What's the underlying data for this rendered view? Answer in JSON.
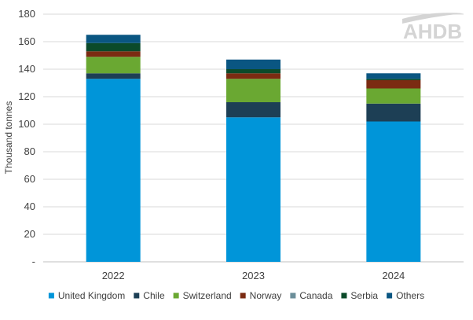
{
  "chart_data": {
    "type": "bar",
    "stacked": true,
    "categories": [
      "2022",
      "2023",
      "2024"
    ],
    "series": [
      {
        "name": "United Kingdom",
        "color": "#0095d9",
        "values": [
          133,
          105,
          102
        ]
      },
      {
        "name": "Chile",
        "color": "#1d3f55",
        "values": [
          4,
          11,
          13
        ]
      },
      {
        "name": "Switzerland",
        "color": "#6aa832",
        "values": [
          12,
          17,
          11
        ]
      },
      {
        "name": "Norway",
        "color": "#7b2b12",
        "values": [
          4,
          4,
          6
        ]
      },
      {
        "name": "Canada",
        "color": "#6b8e99",
        "values": [
          0,
          0,
          0
        ]
      },
      {
        "name": "Serbia",
        "color": "#0b4a2a",
        "values": [
          6,
          3,
          1
        ]
      },
      {
        "name": "Others",
        "color": "#0a5682",
        "values": [
          6,
          7,
          4
        ]
      }
    ],
    "title": "",
    "xlabel": "",
    "ylabel": "Thousand tonnes",
    "ylim": [
      0,
      180
    ],
    "y_ticks": [
      0,
      20,
      40,
      60,
      80,
      100,
      120,
      140,
      160,
      180
    ],
    "y_tick_labels": [
      "-",
      "20",
      "40",
      "60",
      "80",
      "100",
      "120",
      "140",
      "160",
      "180"
    ],
    "grid": true,
    "legend_position": "bottom"
  },
  "logo": {
    "text": "AHDB"
  }
}
